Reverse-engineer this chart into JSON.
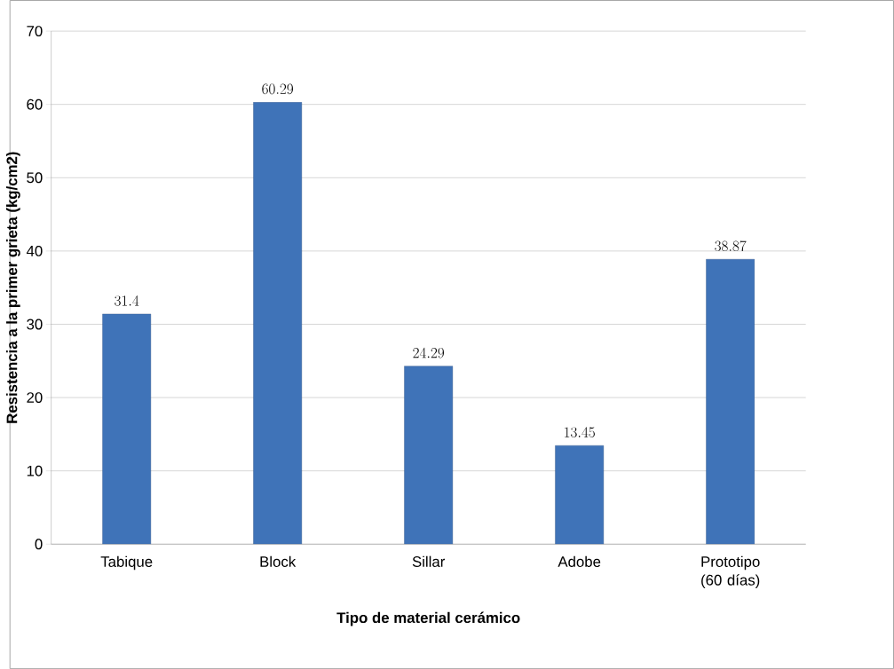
{
  "chart_data": {
    "type": "bar",
    "xlabel": "Tipo de material cerámico",
    "ylabel": "Resistencia a la primer grieta (kg/cm2)",
    "categories": [
      "Tabique",
      "Block",
      "Sillar",
      "Adobe",
      "Prototipo (60 días)"
    ],
    "values": [
      31.4,
      60.29,
      24.29,
      13.45,
      38.87
    ],
    "color": "#3f73b8",
    "ylim": [
      0,
      70
    ],
    "yticks": [
      0,
      10,
      20,
      30,
      40,
      50,
      60,
      70
    ],
    "grid": "y",
    "data_labels": true
  }
}
